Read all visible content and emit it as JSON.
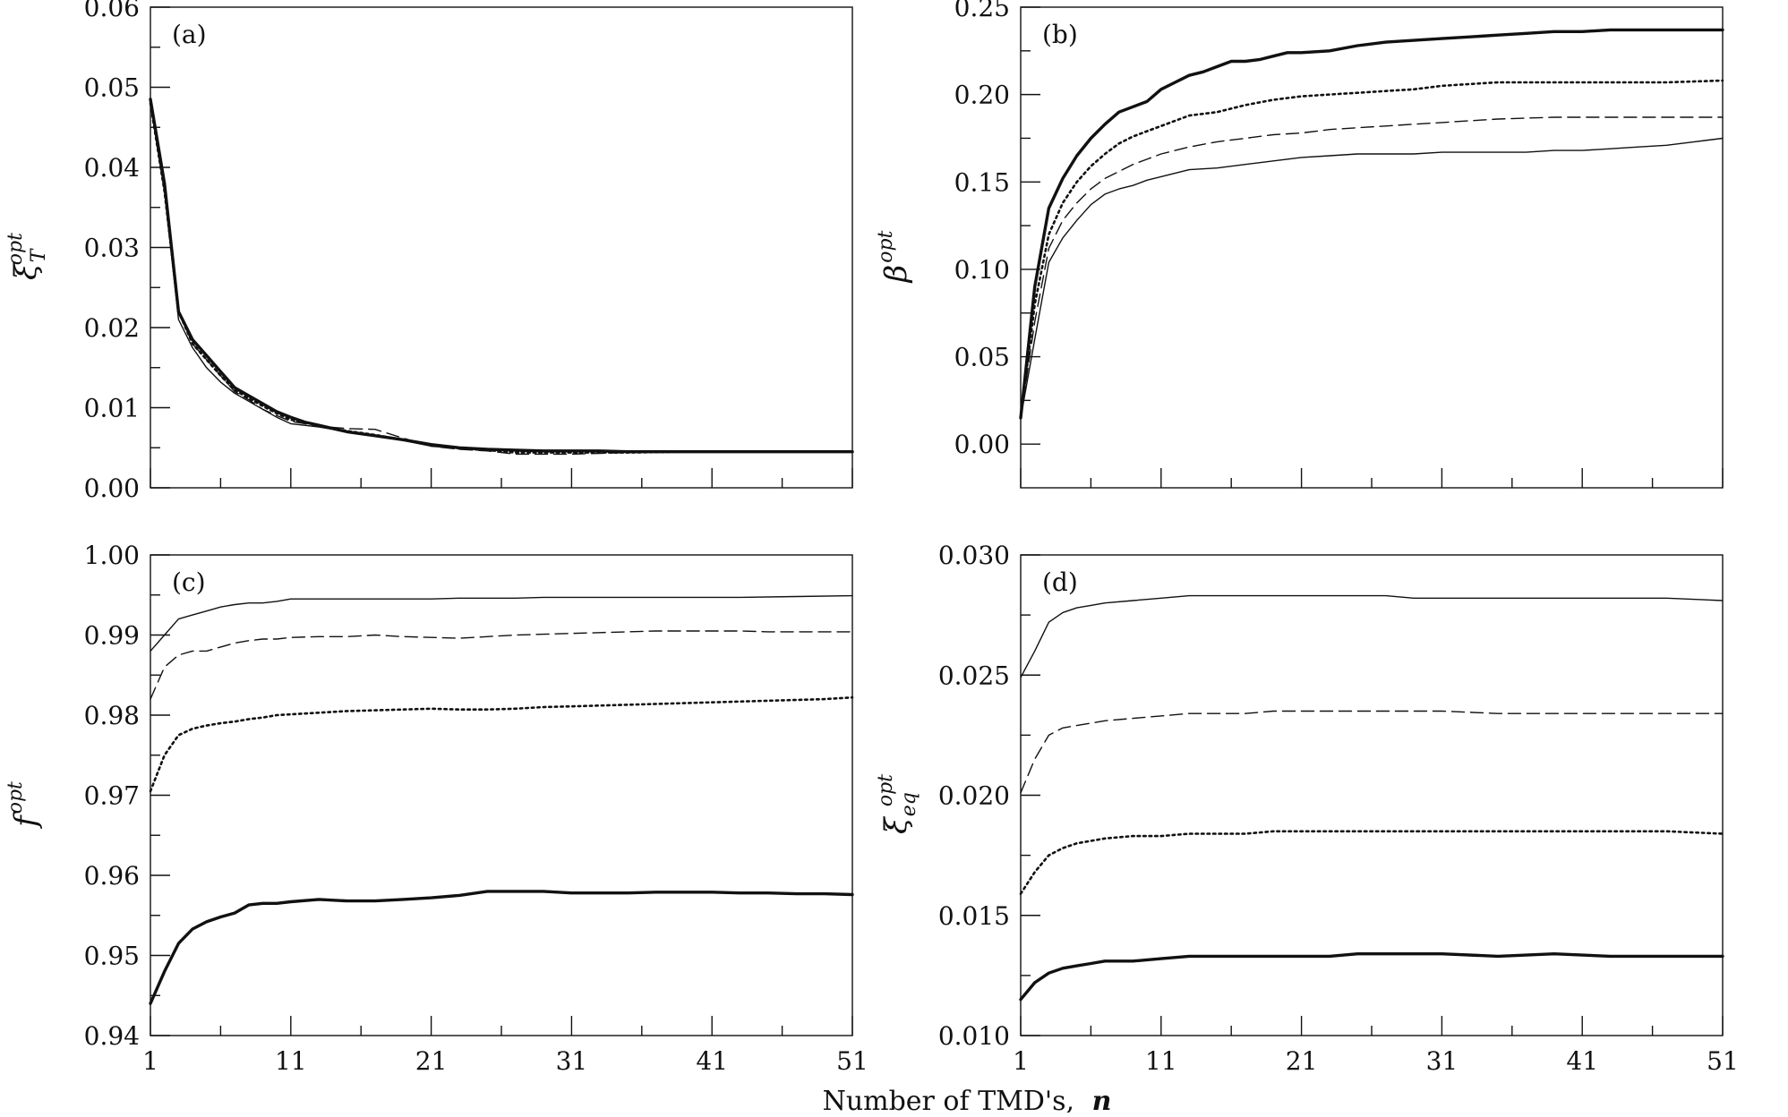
{
  "figure": {
    "xlabel": "Number of TMD's,",
    "xlabel_symbol": "n"
  },
  "chart_data": [
    {
      "type": "line",
      "panel": "(a)",
      "ylabel": {
        "base": "ξ",
        "sub": "T",
        "sup": "opt"
      },
      "xlim": [
        1,
        51
      ],
      "ylim": [
        0,
        0.06
      ],
      "xticks": [],
      "yticks": [
        "0.00",
        "0.01",
        "0.02",
        "0.03",
        "0.04",
        "0.05",
        "0.06"
      ],
      "series": [
        {
          "style": "thick",
          "x": [
            1,
            2,
            3,
            4,
            5,
            6,
            7,
            8,
            9,
            10,
            11,
            12,
            13,
            15,
            17,
            19,
            21,
            23,
            25,
            27,
            29,
            31,
            33,
            35,
            37,
            39,
            41,
            43,
            45,
            47,
            49,
            51
          ],
          "y": [
            0.0485,
            0.038,
            0.022,
            0.0185,
            0.0165,
            0.0145,
            0.0125,
            0.0115,
            0.0105,
            0.0095,
            0.0088,
            0.0082,
            0.0078,
            0.007,
            0.0065,
            0.006,
            0.0054,
            0.005,
            0.0048,
            0.0047,
            0.0046,
            0.0046,
            0.0046,
            0.0045,
            0.0045,
            0.0045,
            0.0045,
            0.0045,
            0.0045,
            0.0045,
            0.0045,
            0.0045
          ]
        },
        {
          "style": "dotted",
          "x": [
            1,
            2,
            3,
            4,
            5,
            6,
            7,
            8,
            9,
            10,
            11,
            13,
            15,
            17,
            19,
            21,
            23,
            25,
            27,
            29,
            31,
            35,
            39,
            43,
            47,
            51
          ],
          "y": [
            0.048,
            0.037,
            0.022,
            0.018,
            0.016,
            0.014,
            0.0122,
            0.0112,
            0.0102,
            0.0093,
            0.0085,
            0.0078,
            0.0071,
            0.0066,
            0.006,
            0.0053,
            0.0049,
            0.0047,
            0.0044,
            0.0044,
            0.0044,
            0.0044,
            0.0045,
            0.0045,
            0.0045,
            0.0045
          ]
        },
        {
          "style": "dashed",
          "x": [
            1,
            2,
            3,
            4,
            5,
            6,
            7,
            8,
            9,
            10,
            11,
            13,
            15,
            17,
            19,
            21,
            23,
            25,
            27,
            29,
            31,
            33,
            35,
            39,
            43,
            47,
            51
          ],
          "y": [
            0.048,
            0.037,
            0.022,
            0.018,
            0.016,
            0.014,
            0.012,
            0.011,
            0.0098,
            0.009,
            0.0083,
            0.0077,
            0.0074,
            0.0073,
            0.0062,
            0.0052,
            0.0048,
            0.0046,
            0.0042,
            0.0042,
            0.0042,
            0.0043,
            0.0044,
            0.0045,
            0.0045,
            0.0045,
            0.0045
          ]
        },
        {
          "style": "thin",
          "x": [
            1,
            2,
            3,
            4,
            5,
            6,
            7,
            8,
            9,
            10,
            11,
            13,
            15,
            17,
            19,
            21,
            23,
            25,
            27,
            29,
            31,
            35,
            39,
            43,
            47,
            51
          ],
          "y": [
            0.048,
            0.037,
            0.021,
            0.0175,
            0.015,
            0.0132,
            0.0118,
            0.0108,
            0.0098,
            0.0088,
            0.008,
            0.0076,
            0.007,
            0.0065,
            0.0059,
            0.0052,
            0.0049,
            0.0047,
            0.0046,
            0.0045,
            0.0045,
            0.0045,
            0.0045,
            0.0045,
            0.0045,
            0.0045
          ]
        }
      ]
    },
    {
      "type": "line",
      "panel": "(b)",
      "ylabel": {
        "base": "β",
        "sub": "",
        "sup": "opt"
      },
      "xlim": [
        1,
        51
      ],
      "ylim": [
        -0.025,
        0.25
      ],
      "xticks": [],
      "yticks": [
        "0.00",
        "0.05",
        "0.10",
        "0.15",
        "0.20",
        "0.25"
      ],
      "series": [
        {
          "style": "thick",
          "x": [
            1,
            2,
            3,
            4,
            5,
            6,
            7,
            8,
            9,
            10,
            11,
            12,
            13,
            14,
            15,
            16,
            17,
            18,
            19,
            20,
            21,
            23,
            25,
            27,
            29,
            31,
            33,
            35,
            37,
            39,
            41,
            43,
            45,
            47,
            49,
            51
          ],
          "y": [
            0.015,
            0.09,
            0.135,
            0.152,
            0.165,
            0.175,
            0.183,
            0.19,
            0.193,
            0.196,
            0.203,
            0.207,
            0.211,
            0.213,
            0.216,
            0.219,
            0.219,
            0.22,
            0.222,
            0.224,
            0.224,
            0.225,
            0.228,
            0.23,
            0.231,
            0.232,
            0.233,
            0.234,
            0.235,
            0.236,
            0.236,
            0.237,
            0.237,
            0.237,
            0.237,
            0.237
          ]
        },
        {
          "style": "dotted",
          "x": [
            1,
            2,
            3,
            4,
            5,
            6,
            7,
            8,
            9,
            10,
            11,
            13,
            15,
            17,
            19,
            21,
            23,
            25,
            27,
            29,
            31,
            33,
            35,
            39,
            43,
            47,
            51
          ],
          "y": [
            0.015,
            0.08,
            0.12,
            0.138,
            0.15,
            0.159,
            0.166,
            0.172,
            0.176,
            0.179,
            0.182,
            0.188,
            0.19,
            0.194,
            0.197,
            0.199,
            0.2,
            0.201,
            0.202,
            0.203,
            0.205,
            0.206,
            0.207,
            0.207,
            0.207,
            0.207,
            0.208
          ]
        },
        {
          "style": "dashed",
          "x": [
            1,
            2,
            3,
            4,
            5,
            6,
            7,
            8,
            9,
            10,
            11,
            13,
            15,
            17,
            19,
            21,
            23,
            25,
            27,
            29,
            31,
            33,
            35,
            39,
            43,
            47,
            51
          ],
          "y": [
            0.015,
            0.07,
            0.112,
            0.128,
            0.138,
            0.146,
            0.152,
            0.156,
            0.16,
            0.163,
            0.166,
            0.17,
            0.173,
            0.175,
            0.177,
            0.178,
            0.18,
            0.181,
            0.182,
            0.183,
            0.184,
            0.185,
            0.186,
            0.187,
            0.187,
            0.187,
            0.187
          ]
        },
        {
          "style": "thin",
          "x": [
            1,
            2,
            3,
            4,
            5,
            6,
            7,
            8,
            9,
            10,
            11,
            13,
            15,
            17,
            19,
            21,
            23,
            25,
            27,
            29,
            31,
            33,
            35,
            37,
            39,
            41,
            43,
            45,
            47,
            49,
            51
          ],
          "y": [
            0.015,
            0.06,
            0.104,
            0.118,
            0.128,
            0.137,
            0.143,
            0.146,
            0.148,
            0.151,
            0.153,
            0.157,
            0.158,
            0.16,
            0.162,
            0.164,
            0.165,
            0.166,
            0.166,
            0.166,
            0.167,
            0.167,
            0.167,
            0.167,
            0.168,
            0.168,
            0.169,
            0.17,
            0.171,
            0.173,
            0.175
          ]
        }
      ]
    },
    {
      "type": "line",
      "panel": "(c)",
      "ylabel": {
        "base": "f",
        "sub": "",
        "sup": "opt"
      },
      "xlim": [
        1,
        51
      ],
      "ylim": [
        0.94,
        1.0
      ],
      "xticks": [
        "1",
        "11",
        "21",
        "31",
        "41",
        "51"
      ],
      "yticks": [
        "0.94",
        "0.95",
        "0.96",
        "0.97",
        "0.98",
        "0.99",
        "1.00"
      ],
      "series": [
        {
          "style": "thin",
          "x": [
            1,
            2,
            3,
            4,
            5,
            6,
            7,
            8,
            9,
            10,
            11,
            12,
            13,
            15,
            17,
            19,
            21,
            23,
            25,
            27,
            29,
            31,
            35,
            39,
            43,
            47,
            51
          ],
          "y": [
            0.988,
            0.99,
            0.992,
            0.9925,
            0.993,
            0.9935,
            0.9938,
            0.994,
            0.994,
            0.9942,
            0.9945,
            0.9945,
            0.9945,
            0.9945,
            0.9945,
            0.9945,
            0.9945,
            0.9946,
            0.9946,
            0.9946,
            0.9947,
            0.9947,
            0.9947,
            0.9947,
            0.9947,
            0.9948,
            0.9949
          ]
        },
        {
          "style": "dashed",
          "x": [
            1,
            2,
            3,
            4,
            5,
            6,
            7,
            8,
            9,
            10,
            11,
            13,
            15,
            17,
            19,
            21,
            23,
            25,
            27,
            29,
            31,
            33,
            35,
            37,
            39,
            41,
            43,
            45,
            47,
            49,
            51
          ],
          "y": [
            0.982,
            0.986,
            0.9875,
            0.988,
            0.988,
            0.9885,
            0.989,
            0.9893,
            0.9895,
            0.9895,
            0.9897,
            0.9898,
            0.9898,
            0.99,
            0.9898,
            0.9897,
            0.9896,
            0.9898,
            0.99,
            0.9901,
            0.9902,
            0.9903,
            0.9904,
            0.9905,
            0.9905,
            0.9905,
            0.9905,
            0.9904,
            0.9904,
            0.9904,
            0.9904
          ]
        },
        {
          "style": "dotted",
          "x": [
            1,
            2,
            3,
            4,
            5,
            6,
            7,
            8,
            9,
            10,
            11,
            13,
            15,
            17,
            19,
            21,
            23,
            25,
            27,
            29,
            31,
            33,
            35,
            37,
            39,
            41,
            43,
            45,
            47,
            49,
            51
          ],
          "y": [
            0.9705,
            0.975,
            0.9775,
            0.9783,
            0.9787,
            0.979,
            0.9792,
            0.9795,
            0.9797,
            0.98,
            0.9801,
            0.9803,
            0.9805,
            0.9806,
            0.9807,
            0.9808,
            0.9807,
            0.9807,
            0.9808,
            0.981,
            0.9811,
            0.9812,
            0.9813,
            0.9814,
            0.9815,
            0.9816,
            0.9817,
            0.9818,
            0.9819,
            0.982,
            0.9822
          ]
        },
        {
          "style": "thick",
          "x": [
            1,
            2,
            3,
            4,
            5,
            6,
            7,
            8,
            9,
            10,
            11,
            13,
            15,
            17,
            19,
            21,
            23,
            25,
            27,
            29,
            31,
            33,
            35,
            37,
            39,
            41,
            43,
            45,
            47,
            49,
            51
          ],
          "y": [
            0.944,
            0.948,
            0.9515,
            0.9533,
            0.9542,
            0.9548,
            0.9553,
            0.9563,
            0.9565,
            0.9565,
            0.9567,
            0.957,
            0.9568,
            0.9568,
            0.957,
            0.9572,
            0.9575,
            0.958,
            0.958,
            0.958,
            0.9578,
            0.9578,
            0.9578,
            0.9579,
            0.9579,
            0.9579,
            0.9578,
            0.9578,
            0.9577,
            0.9577,
            0.9576
          ]
        }
      ]
    },
    {
      "type": "line",
      "panel": "(d)",
      "ylabel": {
        "base": "ξ",
        "sub": "eq",
        "sup": "opt"
      },
      "xlim": [
        1,
        51
      ],
      "ylim": [
        0.01,
        0.03
      ],
      "xticks": [
        "1",
        "11",
        "21",
        "31",
        "41",
        "51"
      ],
      "yticks": [
        "0.010",
        "0.015",
        "0.020",
        "0.025",
        "0.030"
      ],
      "series": [
        {
          "style": "thin",
          "x": [
            1,
            2,
            3,
            4,
            5,
            6,
            7,
            9,
            11,
            13,
            15,
            17,
            19,
            21,
            23,
            25,
            27,
            29,
            31,
            35,
            39,
            43,
            47,
            51
          ],
          "y": [
            0.0249,
            0.026,
            0.0272,
            0.0276,
            0.0278,
            0.0279,
            0.028,
            0.0281,
            0.0282,
            0.0283,
            0.0283,
            0.0283,
            0.0283,
            0.0283,
            0.0283,
            0.0283,
            0.0283,
            0.0282,
            0.0282,
            0.0282,
            0.0282,
            0.0282,
            0.0282,
            0.0281
          ]
        },
        {
          "style": "dashed",
          "x": [
            1,
            2,
            3,
            4,
            5,
            6,
            7,
            9,
            11,
            13,
            15,
            17,
            19,
            21,
            23,
            25,
            27,
            29,
            31,
            35,
            39,
            43,
            47,
            51
          ],
          "y": [
            0.0201,
            0.0215,
            0.0225,
            0.0228,
            0.0229,
            0.023,
            0.0231,
            0.0232,
            0.0233,
            0.0234,
            0.0234,
            0.0234,
            0.0235,
            0.0235,
            0.0235,
            0.0235,
            0.0235,
            0.0235,
            0.0235,
            0.0234,
            0.0234,
            0.0234,
            0.0234,
            0.0234
          ]
        },
        {
          "style": "dotted",
          "x": [
            1,
            2,
            3,
            4,
            5,
            6,
            7,
            9,
            11,
            13,
            15,
            17,
            19,
            21,
            23,
            25,
            27,
            29,
            31,
            35,
            39,
            43,
            47,
            51
          ],
          "y": [
            0.0159,
            0.0168,
            0.0175,
            0.0178,
            0.018,
            0.0181,
            0.0182,
            0.0183,
            0.0183,
            0.0184,
            0.0184,
            0.0184,
            0.0185,
            0.0185,
            0.0185,
            0.0185,
            0.0185,
            0.0185,
            0.0185,
            0.0185,
            0.0185,
            0.0185,
            0.0185,
            0.0184
          ]
        },
        {
          "style": "thick",
          "x": [
            1,
            2,
            3,
            4,
            5,
            6,
            7,
            9,
            11,
            13,
            15,
            17,
            19,
            21,
            23,
            25,
            27,
            29,
            31,
            35,
            39,
            43,
            47,
            51
          ],
          "y": [
            0.0115,
            0.0122,
            0.0126,
            0.0128,
            0.0129,
            0.013,
            0.0131,
            0.0131,
            0.0132,
            0.0133,
            0.0133,
            0.0133,
            0.0133,
            0.0133,
            0.0133,
            0.0134,
            0.0134,
            0.0134,
            0.0134,
            0.0133,
            0.0134,
            0.0133,
            0.0133,
            0.0133
          ]
        }
      ]
    }
  ]
}
